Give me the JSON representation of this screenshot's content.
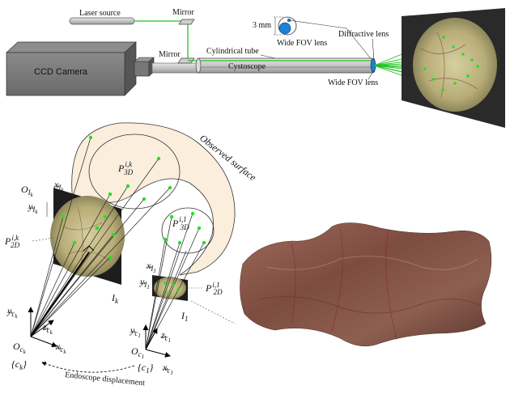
{
  "setup": {
    "laser_source": "Laser source",
    "mirror_top": "Mirror",
    "mirror_mid": "Mirror",
    "ccd_camera": "CCD Camera",
    "cylindrical_tube": "Cylindrical tube",
    "cystoscope": "Cystoscope",
    "three_mm": "3 mm",
    "wide_fov_lens_top": "Wide FOV lens",
    "diffractive_lens": "Diffractive lens",
    "wide_fov_lens_bottom": "Wide FOV lens"
  },
  "geometry_labels": {
    "observed_surface": "Observed surface",
    "p3d_ik": "P",
    "p3d_ik_sup": "i,k",
    "p3d_ik_sub": "3D",
    "p3d_i1": "P",
    "p3d_i1_sup": "i,1",
    "p3d_i1_sub": "3D",
    "p2d_ik": "P",
    "p2d_ik_sup": "i,k",
    "p2d_ik_sub": "2D",
    "p2d_i1": "P",
    "p2d_i1_sup": "i,1",
    "p2d_i1_sub": "2D",
    "o_ik": "O",
    "o_ik_sub": "I",
    "o_ik_subsub": "k",
    "x_ik": "x",
    "x_ik_sub": "I",
    "x_ik_subsub": "k",
    "y_ik": "y",
    "y_ik_sub": "I",
    "y_ik_subsub": "k",
    "x_i1": "x",
    "x_i1_sub": "I",
    "x_i1_subsub": "1",
    "y_i1": "y",
    "y_i1_sub": "I",
    "y_i1_subsub": "1",
    "image_k": "I",
    "image_k_sub": "k",
    "image_1": "I",
    "image_1_sub": "1",
    "y_ck": "y",
    "y_ck_sub": "c",
    "y_ck_subsub": "k",
    "z_ck": "z",
    "z_ck_sub": "c",
    "z_ck_subsub": "k",
    "x_ck": "x",
    "x_ck_sub": "c",
    "x_ck_subsub": "k",
    "o_ck": "O",
    "o_ck_sub": "c",
    "o_ck_subsub": "k",
    "frame_ck": "{c",
    "frame_ck_sub": "k",
    "frame_ck_close": "}",
    "y_c1": "y",
    "y_c1_sub": "c",
    "y_c1_subsub": "1",
    "z_c1": "z",
    "z_c1_sub": "c",
    "z_c1_subsub": "1",
    "o_c1": "O",
    "o_c1_sub": "c",
    "o_c1_subsub": "1",
    "frame_c1": "{c",
    "frame_c1_sub": "1",
    "frame_c1_close": "}",
    "x_c1": "x",
    "x_c1_sub": "c",
    "x_c1_subsub": "1",
    "endoscope_displacement": "Endoscope displacement"
  },
  "colors": {
    "laser_green": "#22c322",
    "surface_fill": "#fbeedd",
    "bladder_tissue": "#8a5a4c",
    "camera_body": "#6f6f6f",
    "lens_blue": "#1e7fd6"
  }
}
